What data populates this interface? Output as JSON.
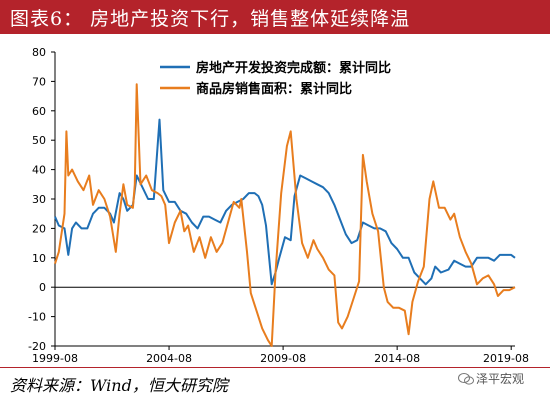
{
  "figure": {
    "title": "图表6：  房地产投资下行，销售整体延续降温",
    "source": "资料来源：Wind，恒大研究院",
    "watermark": "泽平宏观"
  },
  "colors": {
    "accent": "#b4232b",
    "series1": "#1f6fb5",
    "series2": "#e87d1e"
  },
  "chart_data": {
    "type": "line",
    "xlim": [
      "1999-08",
      "2019-10"
    ],
    "ylim": [
      -20,
      80
    ],
    "yticks": [
      -20,
      -10,
      0,
      10,
      20,
      30,
      40,
      50,
      60,
      70,
      80
    ],
    "xtick_labels": [
      "1999-08",
      "2004-08",
      "2009-08",
      "2014-08",
      "2019-08"
    ],
    "grid": false,
    "legend": "top-center",
    "series": [
      {
        "name": "房地产开发投资完成额：累计同比",
        "color": "#1f6fb5",
        "points": [
          [
            "1999-08",
            24
          ],
          [
            "1999-10",
            21
          ],
          [
            "2000-01",
            20
          ],
          [
            "2000-03",
            11
          ],
          [
            "2000-05",
            20
          ],
          [
            "2000-07",
            22
          ],
          [
            "2000-10",
            20
          ],
          [
            "2001-01",
            20
          ],
          [
            "2001-04",
            25
          ],
          [
            "2001-07",
            27
          ],
          [
            "2001-10",
            27
          ],
          [
            "2002-01",
            25
          ],
          [
            "2002-03",
            22
          ],
          [
            "2002-06",
            32
          ],
          [
            "2002-08",
            30
          ],
          [
            "2002-10",
            26
          ],
          [
            "2003-01",
            28
          ],
          [
            "2003-03",
            38
          ],
          [
            "2003-06",
            34
          ],
          [
            "2003-09",
            30
          ],
          [
            "2003-12",
            30
          ],
          [
            "2004-02",
            48
          ],
          [
            "2004-03",
            57
          ],
          [
            "2004-05",
            33
          ],
          [
            "2004-08",
            29
          ],
          [
            "2004-11",
            29
          ],
          [
            "2005-02",
            26
          ],
          [
            "2005-05",
            25
          ],
          [
            "2005-08",
            22
          ],
          [
            "2005-11",
            20
          ],
          [
            "2006-02",
            24
          ],
          [
            "2006-05",
            24
          ],
          [
            "2006-08",
            23
          ],
          [
            "2006-11",
            22
          ],
          [
            "2007-02",
            26
          ],
          [
            "2007-05",
            28
          ],
          [
            "2007-08",
            29
          ],
          [
            "2007-11",
            30
          ],
          [
            "2008-02",
            32
          ],
          [
            "2008-05",
            32
          ],
          [
            "2008-07",
            31
          ],
          [
            "2008-09",
            28
          ],
          [
            "2008-11",
            21
          ],
          [
            "2009-02",
            1
          ],
          [
            "2009-04",
            5
          ],
          [
            "2009-06",
            10
          ],
          [
            "2009-09",
            17
          ],
          [
            "2009-12",
            16
          ],
          [
            "2010-02",
            31
          ],
          [
            "2010-05",
            38
          ],
          [
            "2010-08",
            37
          ],
          [
            "2010-11",
            36
          ],
          [
            "2011-02",
            35
          ],
          [
            "2011-05",
            34
          ],
          [
            "2011-08",
            32
          ],
          [
            "2011-11",
            28
          ],
          [
            "2012-02",
            23
          ],
          [
            "2012-05",
            18
          ],
          [
            "2012-08",
            15
          ],
          [
            "2012-11",
            16
          ],
          [
            "2013-02",
            22
          ],
          [
            "2013-05",
            21
          ],
          [
            "2013-08",
            20
          ],
          [
            "2013-11",
            20
          ],
          [
            "2014-02",
            19
          ],
          [
            "2014-05",
            15
          ],
          [
            "2014-08",
            13
          ],
          [
            "2014-11",
            10
          ],
          [
            "2015-02",
            10
          ],
          [
            "2015-05",
            5
          ],
          [
            "2015-08",
            3
          ],
          [
            "2015-11",
            1
          ],
          [
            "2016-02",
            3
          ],
          [
            "2016-04",
            7
          ],
          [
            "2016-07",
            5
          ],
          [
            "2016-11",
            6
          ],
          [
            "2017-02",
            9
          ],
          [
            "2017-05",
            8
          ],
          [
            "2017-08",
            7
          ],
          [
            "2017-11",
            7
          ],
          [
            "2018-02",
            10
          ],
          [
            "2018-05",
            10
          ],
          [
            "2018-08",
            10
          ],
          [
            "2018-11",
            9
          ],
          [
            "2019-02",
            11
          ],
          [
            "2019-05",
            11
          ],
          [
            "2019-08",
            11
          ],
          [
            "2019-10",
            10
          ]
        ]
      },
      {
        "name": "商品房销售面积：累计同比",
        "color": "#e87d1e",
        "points": [
          [
            "1999-08",
            8
          ],
          [
            "1999-10",
            12
          ],
          [
            "2000-01",
            25
          ],
          [
            "2000-02",
            53
          ],
          [
            "2000-03",
            38
          ],
          [
            "2000-05",
            40
          ],
          [
            "2000-08",
            36
          ],
          [
            "2000-11",
            33
          ],
          [
            "2001-02",
            38
          ],
          [
            "2001-04",
            28
          ],
          [
            "2001-07",
            33
          ],
          [
            "2001-10",
            30
          ],
          [
            "2002-01",
            24
          ],
          [
            "2002-04",
            12
          ],
          [
            "2002-06",
            25
          ],
          [
            "2002-08",
            35
          ],
          [
            "2002-10",
            28
          ],
          [
            "2003-01",
            27
          ],
          [
            "2003-02",
            35
          ],
          [
            "2003-03",
            69
          ],
          [
            "2003-05",
            35
          ],
          [
            "2003-08",
            38
          ],
          [
            "2003-11",
            33
          ],
          [
            "2004-02",
            32
          ],
          [
            "2004-04",
            31
          ],
          [
            "2004-06",
            28
          ],
          [
            "2004-08",
            15
          ],
          [
            "2004-11",
            22
          ],
          [
            "2005-02",
            26
          ],
          [
            "2005-04",
            19
          ],
          [
            "2005-06",
            21
          ],
          [
            "2005-09",
            12
          ],
          [
            "2005-12",
            17
          ],
          [
            "2006-03",
            10
          ],
          [
            "2006-06",
            17
          ],
          [
            "2006-09",
            12
          ],
          [
            "2006-12",
            15
          ],
          [
            "2007-03",
            22
          ],
          [
            "2007-06",
            29
          ],
          [
            "2007-09",
            27
          ],
          [
            "2007-10",
            30
          ],
          [
            "2008-01",
            12
          ],
          [
            "2008-03",
            -2
          ],
          [
            "2008-06",
            -8
          ],
          [
            "2008-09",
            -14
          ],
          [
            "2008-12",
            -18
          ],
          [
            "2009-02",
            -20
          ],
          [
            "2009-04",
            5
          ],
          [
            "2009-07",
            32
          ],
          [
            "2009-10",
            48
          ],
          [
            "2009-12",
            53
          ],
          [
            "2010-03",
            30
          ],
          [
            "2010-06",
            15
          ],
          [
            "2010-09",
            10
          ],
          [
            "2010-12",
            16
          ],
          [
            "2011-02",
            13
          ],
          [
            "2011-05",
            10
          ],
          [
            "2011-08",
            6
          ],
          [
            "2011-11",
            4
          ],
          [
            "2012-01",
            -12
          ],
          [
            "2012-03",
            -14
          ],
          [
            "2012-06",
            -10
          ],
          [
            "2012-09",
            -4
          ],
          [
            "2012-12",
            2
          ],
          [
            "2013-02",
            45
          ],
          [
            "2013-04",
            36
          ],
          [
            "2013-07",
            25
          ],
          [
            "2013-10",
            19
          ],
          [
            "2014-01",
            0
          ],
          [
            "2014-03",
            -5
          ],
          [
            "2014-06",
            -7
          ],
          [
            "2014-09",
            -7
          ],
          [
            "2014-12",
            -8
          ],
          [
            "2015-02",
            -16
          ],
          [
            "2015-04",
            -5
          ],
          [
            "2015-07",
            2
          ],
          [
            "2015-10",
            7
          ],
          [
            "2016-01",
            30
          ],
          [
            "2016-03",
            36
          ],
          [
            "2016-06",
            27
          ],
          [
            "2016-09",
            27
          ],
          [
            "2016-12",
            23
          ],
          [
            "2017-02",
            25
          ],
          [
            "2017-05",
            17
          ],
          [
            "2017-08",
            12
          ],
          [
            "2017-11",
            8
          ],
          [
            "2018-02",
            1
          ],
          [
            "2018-05",
            3
          ],
          [
            "2018-08",
            4
          ],
          [
            "2018-11",
            1
          ],
          [
            "2019-01",
            -3
          ],
          [
            "2019-04",
            -1
          ],
          [
            "2019-07",
            -1
          ],
          [
            "2019-10",
            0
          ]
        ]
      }
    ]
  }
}
